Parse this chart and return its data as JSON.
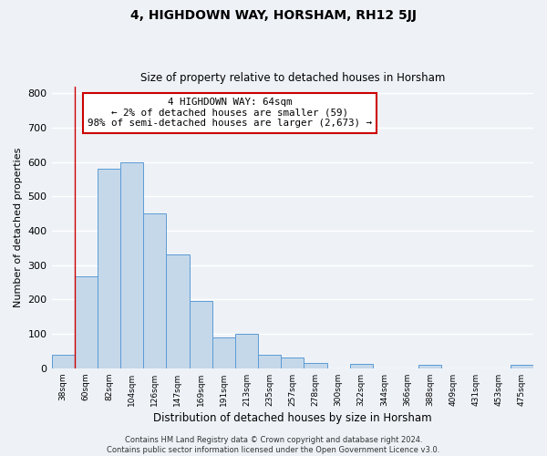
{
  "title": "4, HIGHDOWN WAY, HORSHAM, RH12 5JJ",
  "subtitle": "Size of property relative to detached houses in Horsham",
  "xlabel": "Distribution of detached houses by size in Horsham",
  "ylabel": "Number of detached properties",
  "bar_labels": [
    "38sqm",
    "60sqm",
    "82sqm",
    "104sqm",
    "126sqm",
    "147sqm",
    "169sqm",
    "191sqm",
    "213sqm",
    "235sqm",
    "257sqm",
    "278sqm",
    "300sqm",
    "322sqm",
    "344sqm",
    "366sqm",
    "388sqm",
    "409sqm",
    "431sqm",
    "453sqm",
    "475sqm"
  ],
  "bar_values": [
    38,
    268,
    580,
    600,
    450,
    330,
    195,
    90,
    100,
    38,
    32,
    15,
    0,
    12,
    0,
    0,
    10,
    0,
    0,
    0,
    10
  ],
  "bar_color": "#c5d8ea",
  "bar_edge_color": "#5b9bd5",
  "red_line_x": 0.5,
  "ylim": [
    0,
    820
  ],
  "yticks": [
    0,
    100,
    200,
    300,
    400,
    500,
    600,
    700,
    800
  ],
  "annotation_title": "4 HIGHDOWN WAY: 64sqm",
  "annotation_line1": "← 2% of detached houses are smaller (59)",
  "annotation_line2": "98% of semi-detached houses are larger (2,673) →",
  "annotation_box_color": "#ffffff",
  "annotation_box_edge_color": "#cc0000",
  "footer_line1": "Contains HM Land Registry data © Crown copyright and database right 2024.",
  "footer_line2": "Contains public sector information licensed under the Open Government Licence v3.0.",
  "background_color": "#eef2f7",
  "plot_bg_color": "#eef2f7",
  "grid_color": "#ffffff"
}
